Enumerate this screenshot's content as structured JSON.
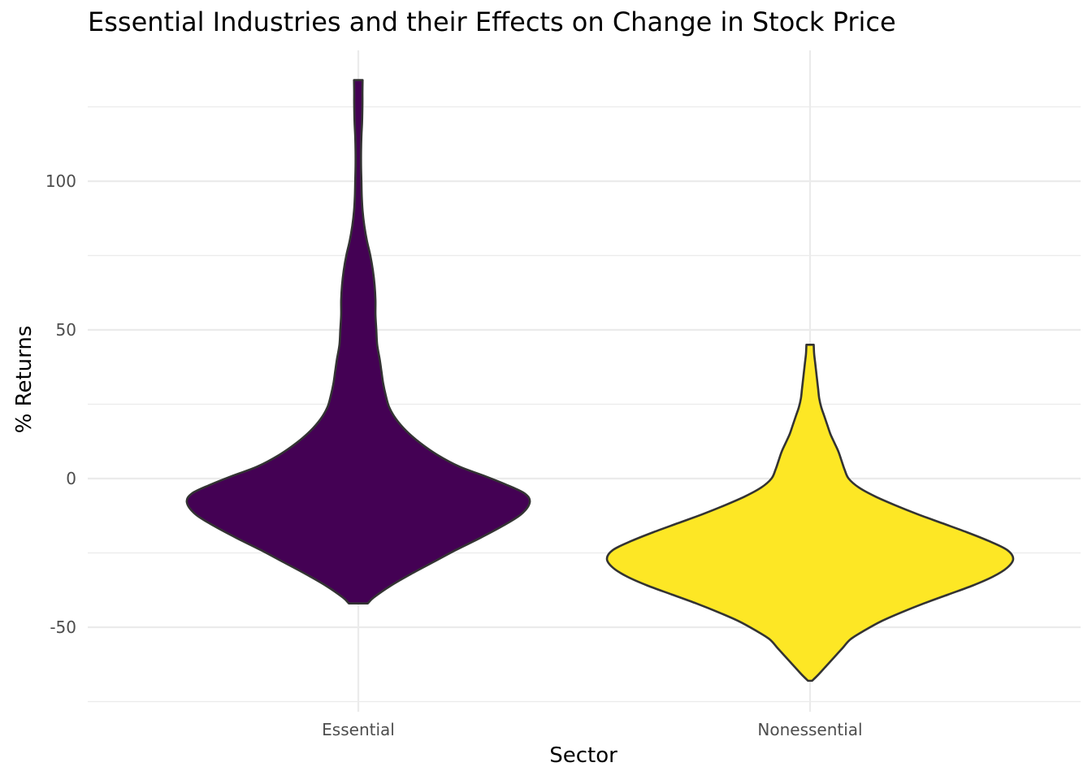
{
  "chart_data": {
    "type": "violin",
    "title": "Essential Industries and their Effects on Change in Stock Price",
    "xlabel": "Sector",
    "ylabel": "% Returns",
    "ylim": [
      -75,
      145
    ],
    "yticks": [
      -50,
      0,
      50,
      100
    ],
    "y_tick_labels": [
      "-50",
      "0",
      "50",
      "100"
    ],
    "grid": true,
    "legend": "none",
    "categories": [
      "Essential",
      "Nonessential"
    ],
    "series": [
      {
        "category": "Essential",
        "color": "#440154",
        "min": -42,
        "max": 134,
        "density_profile": [
          [
            -42,
            0.055
          ],
          [
            -40,
            0.09
          ],
          [
            -36,
            0.19
          ],
          [
            -32,
            0.31
          ],
          [
            -28,
            0.44
          ],
          [
            -24,
            0.57
          ],
          [
            -20,
            0.71
          ],
          [
            -16,
            0.84
          ],
          [
            -12,
            0.95
          ],
          [
            -8,
            1.0
          ],
          [
            -5,
            0.97
          ],
          [
            -2,
            0.86
          ],
          [
            1,
            0.73
          ],
          [
            4,
            0.59
          ],
          [
            8,
            0.46
          ],
          [
            12,
            0.36
          ],
          [
            16,
            0.28
          ],
          [
            20,
            0.22
          ],
          [
            24,
            0.18
          ],
          [
            28,
            0.16
          ],
          [
            32,
            0.145
          ],
          [
            36,
            0.135
          ],
          [
            40,
            0.125
          ],
          [
            45,
            0.11
          ],
          [
            50,
            0.105
          ],
          [
            55,
            0.1
          ],
          [
            60,
            0.1
          ],
          [
            65,
            0.095
          ],
          [
            70,
            0.085
          ],
          [
            75,
            0.07
          ],
          [
            80,
            0.05
          ],
          [
            85,
            0.035
          ],
          [
            90,
            0.025
          ],
          [
            95,
            0.02
          ],
          [
            100,
            0.018
          ],
          [
            105,
            0.016
          ],
          [
            110,
            0.016
          ],
          [
            115,
            0.018
          ],
          [
            120,
            0.022
          ],
          [
            126,
            0.024
          ],
          [
            130,
            0.024
          ],
          [
            134,
            0.025
          ]
        ]
      },
      {
        "category": "Nonessential",
        "color": "#fde725",
        "min": -68,
        "max": 45,
        "density_profile": [
          [
            -68,
            0.01
          ],
          [
            -66,
            0.04
          ],
          [
            -63,
            0.08
          ],
          [
            -60,
            0.12
          ],
          [
            -57,
            0.16
          ],
          [
            -54,
            0.2
          ],
          [
            -51,
            0.27
          ],
          [
            -48,
            0.35
          ],
          [
            -45,
            0.45
          ],
          [
            -42,
            0.56
          ],
          [
            -39,
            0.68
          ],
          [
            -36,
            0.8
          ],
          [
            -33,
            0.9
          ],
          [
            -30,
            0.97
          ],
          [
            -27,
            1.0
          ],
          [
            -24,
            0.97
          ],
          [
            -21,
            0.88
          ],
          [
            -18,
            0.77
          ],
          [
            -15,
            0.65
          ],
          [
            -12,
            0.53
          ],
          [
            -9,
            0.42
          ],
          [
            -6,
            0.32
          ],
          [
            -3,
            0.24
          ],
          [
            0,
            0.19
          ],
          [
            3,
            0.17
          ],
          [
            6,
            0.155
          ],
          [
            9,
            0.14
          ],
          [
            12,
            0.12
          ],
          [
            15,
            0.1
          ],
          [
            18,
            0.085
          ],
          [
            21,
            0.07
          ],
          [
            24,
            0.055
          ],
          [
            27,
            0.045
          ],
          [
            30,
            0.04
          ],
          [
            33,
            0.035
          ],
          [
            36,
            0.03
          ],
          [
            39,
            0.025
          ],
          [
            42,
            0.02
          ],
          [
            45,
            0.018
          ]
        ]
      }
    ]
  }
}
